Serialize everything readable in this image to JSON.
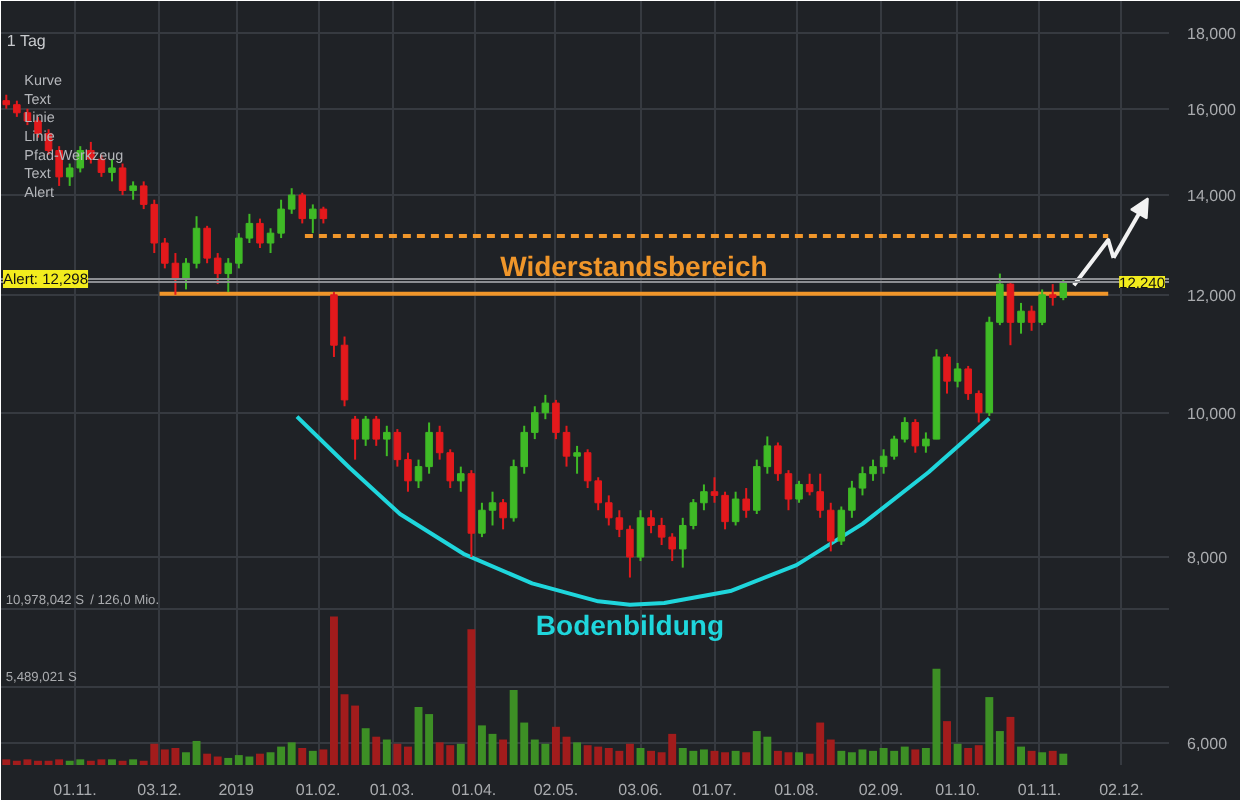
{
  "chart_data": {
    "type": "candlestick",
    "subtitle": "1 Tag",
    "annotations": [
      "Kurve",
      "Text",
      "Linie",
      "Linie",
      "Pfad-Werkzeug",
      "Text",
      "Alert"
    ],
    "x": [
      "2018-10-06",
      "2018-10-10",
      "2018-10-14",
      "2018-10-18",
      "2018-10-22",
      "2018-10-26",
      "2018-10-30",
      "2018-11-03",
      "2018-11-07",
      "2018-11-11",
      "2018-11-15",
      "2018-11-19",
      "2018-11-23",
      "2018-11-27",
      "2018-12-01",
      "2018-12-05",
      "2018-12-09",
      "2018-12-13",
      "2018-12-17",
      "2018-12-21",
      "2018-12-25",
      "2018-12-29",
      "2019-01-02",
      "2019-01-06",
      "2019-01-10",
      "2019-01-14",
      "2019-01-18",
      "2019-01-22",
      "2019-01-26",
      "2019-01-30",
      "2019-02-03",
      "2019-02-07",
      "2019-02-11",
      "2019-02-15",
      "2019-02-19",
      "2019-02-23",
      "2019-02-27",
      "2019-03-03",
      "2019-03-07",
      "2019-03-11",
      "2019-03-15",
      "2019-03-19",
      "2019-03-23",
      "2019-03-27",
      "2019-03-31",
      "2019-04-04",
      "2019-04-08",
      "2019-04-12",
      "2019-04-16",
      "2019-04-20",
      "2019-04-24",
      "2019-04-28",
      "2019-05-02",
      "2019-05-06",
      "2019-05-10",
      "2019-05-14",
      "2019-05-18",
      "2019-05-22",
      "2019-05-26",
      "2019-05-30",
      "2019-06-03",
      "2019-06-07",
      "2019-06-11",
      "2019-06-15",
      "2019-06-19",
      "2019-06-23",
      "2019-06-27",
      "2019-07-01",
      "2019-07-05",
      "2019-07-09",
      "2019-07-13",
      "2019-07-17",
      "2019-07-21",
      "2019-07-25",
      "2019-07-29",
      "2019-08-02",
      "2019-08-06",
      "2019-08-10",
      "2019-08-14",
      "2019-08-18",
      "2019-08-22",
      "2019-08-26",
      "2019-08-30",
      "2019-09-03",
      "2019-09-07",
      "2019-09-11",
      "2019-09-15",
      "2019-09-19",
      "2019-09-23",
      "2019-09-27",
      "2019-10-01",
      "2019-10-05",
      "2019-10-09",
      "2019-10-13",
      "2019-10-17",
      "2019-10-21",
      "2019-10-25",
      "2019-10-29",
      "2019-11-02",
      "2019-11-06",
      "2019-11-10"
    ],
    "ohlc": [
      [
        16200,
        16350,
        16000,
        16100
      ],
      [
        16100,
        16200,
        15800,
        15900
      ],
      [
        15900,
        16000,
        15600,
        15700
      ],
      [
        15700,
        15800,
        15300,
        15400
      ],
      [
        15400,
        15500,
        14900,
        15000
      ],
      [
        15000,
        15100,
        14200,
        14400
      ],
      [
        14400,
        14700,
        14200,
        14600
      ],
      [
        14600,
        15100,
        14500,
        15000
      ],
      [
        15000,
        15200,
        14700,
        14800
      ],
      [
        14800,
        14900,
        14400,
        14500
      ],
      [
        14500,
        14800,
        14300,
        14600
      ],
      [
        14600,
        14700,
        14000,
        14100
      ],
      [
        14100,
        14300,
        13900,
        14200
      ],
      [
        14200,
        14300,
        13700,
        13800
      ],
      [
        13800,
        13900,
        12800,
        13000
      ],
      [
        13000,
        13100,
        12500,
        12600
      ],
      [
        12600,
        12800,
        12000,
        12300
      ],
      [
        12300,
        12700,
        12100,
        12600
      ],
      [
        12600,
        13550,
        12500,
        13300
      ],
      [
        13300,
        13350,
        12600,
        12700
      ],
      [
        12700,
        12800,
        12200,
        12400
      ],
      [
        12400,
        12700,
        12050,
        12600
      ],
      [
        12600,
        13200,
        12500,
        13100
      ],
      [
        13100,
        13600,
        13000,
        13400
      ],
      [
        13400,
        13500,
        12900,
        13000
      ],
      [
        13000,
        13300,
        12800,
        13200
      ],
      [
        13200,
        13900,
        13100,
        13700
      ],
      [
        13700,
        14150,
        13600,
        14000
      ],
      [
        14000,
        14050,
        13400,
        13500
      ],
      [
        13500,
        13800,
        13200,
        13700
      ],
      [
        13700,
        13750,
        13400,
        13500
      ],
      [
        12000,
        12050,
        10900,
        11100
      ],
      [
        11100,
        11250,
        10100,
        10200
      ],
      [
        9900,
        9950,
        9300,
        9600
      ],
      [
        9600,
        9950,
        9500,
        9900
      ],
      [
        9900,
        9950,
        9500,
        9600
      ],
      [
        9600,
        9800,
        9350,
        9700
      ],
      [
        9700,
        9750,
        9200,
        9300
      ],
      [
        9300,
        9400,
        8850,
        9000
      ],
      [
        9000,
        9300,
        8900,
        9200
      ],
      [
        9200,
        9850,
        9100,
        9700
      ],
      [
        9700,
        9800,
        9300,
        9400
      ],
      [
        9400,
        9450,
        8900,
        9000
      ],
      [
        9000,
        9200,
        8850,
        9100
      ],
      [
        9100,
        9150,
        8000,
        8300
      ],
      [
        8300,
        8700,
        8250,
        8600
      ],
      [
        8600,
        8850,
        8400,
        8700
      ],
      [
        8700,
        8750,
        8350,
        8500
      ],
      [
        8500,
        9300,
        8450,
        9200
      ],
      [
        9200,
        9800,
        9100,
        9700
      ],
      [
        9700,
        10100,
        9600,
        10000
      ],
      [
        10000,
        10280,
        9900,
        10150
      ],
      [
        10150,
        10200,
        9600,
        9700
      ],
      [
        9700,
        9800,
        9200,
        9350
      ],
      [
        9350,
        9500,
        9100,
        9400
      ],
      [
        9400,
        9450,
        8900,
        9000
      ],
      [
        9000,
        9050,
        8600,
        8700
      ],
      [
        8700,
        8800,
        8400,
        8500
      ],
      [
        8500,
        8600,
        8250,
        8350
      ],
      [
        8350,
        8400,
        7750,
        8000
      ],
      [
        8000,
        8600,
        7950,
        8500
      ],
      [
        8500,
        8600,
        8300,
        8400
      ],
      [
        8400,
        8500,
        8150,
        8250
      ],
      [
        8250,
        8300,
        7950,
        8100
      ],
      [
        8100,
        8500,
        7870,
        8400
      ],
      [
        8400,
        8750,
        8350,
        8700
      ],
      [
        8700,
        8950,
        8600,
        8850
      ],
      [
        8850,
        9050,
        8700,
        8800
      ],
      [
        8800,
        8850,
        8350,
        8450
      ],
      [
        8450,
        8850,
        8400,
        8750
      ],
      [
        8750,
        8900,
        8500,
        8600
      ],
      [
        8600,
        9300,
        8550,
        9200
      ],
      [
        9200,
        9640,
        9100,
        9500
      ],
      [
        9500,
        9550,
        9000,
        9100
      ],
      [
        9100,
        9150,
        8600,
        8750
      ],
      [
        8750,
        9000,
        8700,
        8950
      ],
      [
        8950,
        9100,
        8800,
        8850
      ],
      [
        8850,
        9100,
        8500,
        8600
      ],
      [
        8600,
        8700,
        8070,
        8200
      ],
      [
        8200,
        8650,
        8150,
        8600
      ],
      [
        8600,
        9000,
        8500,
        8900
      ],
      [
        8900,
        9200,
        8800,
        9100
      ],
      [
        9100,
        9300,
        9000,
        9200
      ],
      [
        9200,
        9450,
        9100,
        9350
      ],
      [
        9350,
        9650,
        9300,
        9600
      ],
      [
        9600,
        9930,
        9550,
        9850
      ],
      [
        9850,
        9900,
        9400,
        9500
      ],
      [
        9500,
        9700,
        9400,
        9600
      ],
      [
        9600,
        11030,
        9600,
        10900
      ],
      [
        10900,
        10950,
        10300,
        10500
      ],
      [
        10500,
        10800,
        10400,
        10700
      ],
      [
        10700,
        10750,
        10200,
        10300
      ],
      [
        10300,
        10350,
        9850,
        10000
      ],
      [
        10000,
        11600,
        9950,
        11500
      ],
      [
        11500,
        12400,
        11450,
        12200
      ],
      [
        12200,
        12250,
        11100,
        11500
      ],
      [
        11500,
        11850,
        11300,
        11700
      ],
      [
        11700,
        11800,
        11350,
        11500
      ],
      [
        11500,
        12100,
        11450,
        12000
      ],
      [
        12000,
        12200,
        11800,
        11950
      ],
      [
        11950,
        12300,
        11900,
        12240
      ]
    ],
    "xlim": [
      "2018-10-04",
      "2019-12-20"
    ],
    "ylim": [
      5800,
      18900
    ],
    "log": "y",
    "grid": true,
    "xticks": [
      {
        "value": "2018-11-01",
        "label": "01.11."
      },
      {
        "value": "2018-12-03",
        "label": "03.12."
      },
      {
        "value": "2019-01-01",
        "label": "2019"
      },
      {
        "value": "2019-02-01",
        "label": "01.02."
      },
      {
        "value": "2019-03-01",
        "label": "01.03."
      },
      {
        "value": "2019-04-01",
        "label": "01.04."
      },
      {
        "value": "2019-05-02",
        "label": "02.05."
      },
      {
        "value": "2019-06-03",
        "label": "03.06."
      },
      {
        "value": "2019-07-01",
        "label": "01.07."
      },
      {
        "value": "2019-08-01",
        "label": "01.08."
      },
      {
        "value": "2019-09-02",
        "label": "02.09."
      },
      {
        "value": "2019-10-01",
        "label": "01.10."
      },
      {
        "value": "2019-11-01",
        "label": "01.11."
      },
      {
        "value": "2019-12-02",
        "label": "02.12."
      }
    ],
    "yticks": [
      {
        "value": 6000,
        "label": "6,000"
      },
      {
        "value": 8000,
        "label": "8,000"
      },
      {
        "value": 10000,
        "label": "10,000"
      },
      {
        "value": 12000,
        "label": "12,000"
      },
      {
        "value": 14000,
        "label": "14,000"
      },
      {
        "value": 16000,
        "label": "16,000"
      },
      {
        "value": 18000,
        "label": "18,000"
      }
    ],
    "y2lim": [
      0,
      54000000
    ],
    "y2ticks": [
      {
        "value": 5489021,
        "label": "5,489,021 S"
      },
      {
        "value": 10978042,
        "label": "10,978,042 S"
      }
    ],
    "y2label": "/ 126,0 Mio.",
    "series": [
      {
        "type": "bar",
        "axis": "y2",
        "values": [
          400000,
          300000,
          400000,
          300000,
          300000,
          400000,
          300000,
          400000,
          300000,
          400000,
          400000,
          300000,
          400000,
          300000,
          1500000,
          1100000,
          1200000,
          900000,
          1700000,
          800000,
          600000,
          500000,
          700000,
          600000,
          800000,
          900000,
          1300000,
          1600000,
          1200000,
          1000000,
          1100000,
          10500000,
          5000000,
          4200000,
          2600000,
          2000000,
          1800000,
          1500000,
          1300000,
          4100000,
          3600000,
          1600000,
          1400000,
          1500000,
          9600000,
          2800000,
          2200000,
          1800000,
          5300000,
          3000000,
          1800000,
          1500000,
          2700000,
          2000000,
          1600000,
          1400000,
          1300000,
          1200000,
          1000000,
          1500000,
          1200000,
          1000000,
          900000,
          2200000,
          1200000,
          1000000,
          1100000,
          1000000,
          900000,
          1000000,
          900000,
          2400000,
          2000000,
          1000000,
          900000,
          900000,
          800000,
          3000000,
          1800000,
          1000000,
          900000,
          1100000,
          1000000,
          1200000,
          1000000,
          1300000,
          1100000,
          1200000,
          6800000,
          3100000,
          1500000,
          1200000,
          1400000,
          4800000,
          2400000,
          3400000,
          1300000,
          1000000,
          900000,
          1000000,
          800000
        ],
        "colors": [
          "#a21c1c",
          "#a21c1c",
          "#a21c1c",
          "#a21c1c",
          "#a21c1c",
          "#a21c1c",
          "#3d8f25",
          "#3d8f25",
          "#a21c1c",
          "#a21c1c",
          "#3d8f25",
          "#a21c1c",
          "#3d8f25",
          "#a21c1c",
          "#a21c1c",
          "#a21c1c",
          "#a21c1c",
          "#3d8f25",
          "#3d8f25",
          "#a21c1c",
          "#a21c1c",
          "#3d8f25",
          "#3d8f25",
          "#3d8f25",
          "#a21c1c",
          "#3d8f25",
          "#3d8f25",
          "#3d8f25",
          "#a21c1c",
          "#3d8f25",
          "#a21c1c",
          "#a21c1c",
          "#a21c1c",
          "#a21c1c",
          "#3d8f25",
          "#a21c1c",
          "#3d8f25",
          "#a21c1c",
          "#a21c1c",
          "#3d8f25",
          "#3d8f25",
          "#a21c1c",
          "#a21c1c",
          "#3d8f25",
          "#a21c1c",
          "#3d8f25",
          "#3d8f25",
          "#a21c1c",
          "#3d8f25",
          "#3d8f25",
          "#3d8f25",
          "#3d8f25",
          "#a21c1c",
          "#a21c1c",
          "#3d8f25",
          "#a21c1c",
          "#a21c1c",
          "#a21c1c",
          "#a21c1c",
          "#a21c1c",
          "#3d8f25",
          "#a21c1c",
          "#a21c1c",
          "#a21c1c",
          "#3d8f25",
          "#3d8f25",
          "#3d8f25",
          "#a21c1c",
          "#a21c1c",
          "#3d8f25",
          "#a21c1c",
          "#3d8f25",
          "#3d8f25",
          "#a21c1c",
          "#a21c1c",
          "#3d8f25",
          "#a21c1c",
          "#a21c1c",
          "#a21c1c",
          "#3d8f25",
          "#3d8f25",
          "#3d8f25",
          "#3d8f25",
          "#3d8f25",
          "#3d8f25",
          "#3d8f25",
          "#a21c1c",
          "#3d8f25",
          "#3d8f25",
          "#a21c1c",
          "#3d8f25",
          "#a21c1c",
          "#a21c1c",
          "#3d8f25",
          "#3d8f25",
          "#a21c1c",
          "#3d8f25",
          "#a21c1c",
          "#3d8f25",
          "#a21c1c",
          "#3d8f25"
        ]
      },
      {
        "type": "line",
        "name": "Bodenbildung",
        "x": [
          "2019-01-24",
          "2019-02-13",
          "2019-03-04",
          "2019-03-28",
          "2019-04-23",
          "2019-05-18",
          "2019-05-30",
          "2019-06-12",
          "2019-07-07",
          "2019-08-01",
          "2019-08-26",
          "2019-09-20",
          "2019-10-13"
        ],
        "values": [
          9940,
          9180,
          8550,
          8040,
          7680,
          7470,
          7430,
          7450,
          7590,
          7900,
          8420,
          9120,
          9910
        ],
        "color": "#1fd6dc"
      },
      {
        "type": "line",
        "x": [
          "2019-01-27",
          "2019-11-27"
        ],
        "values": [
          13140,
          13140
        ],
        "color": "#f0962a",
        "line_style": "dashed"
      },
      {
        "type": "line",
        "name": "Widerstandsbereich",
        "x": [
          "2018-12-03",
          "2019-11-27"
        ],
        "values": [
          12020,
          12020
        ],
        "color": "#f0962a",
        "line_style": "solid"
      }
    ],
    "ref_lines": [
      {
        "axis": "y",
        "value": 12298,
        "label": "Alert: 12,298",
        "color": "#8c8e92"
      },
      {
        "axis": "y",
        "value": 12240,
        "label": "12,240",
        "color": "#8c8e92"
      }
    ]
  }
}
